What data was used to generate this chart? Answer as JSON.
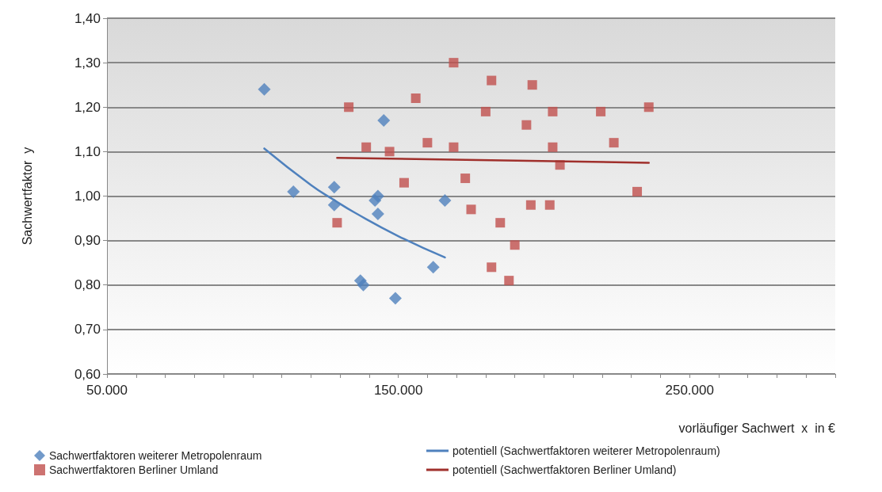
{
  "chart_data": {
    "type": "scatter",
    "xlabel": "vorläufiger Sachwert  x  in €",
    "ylabel": "Sachwertfaktor  y",
    "xlim": [
      50000,
      300000
    ],
    "xticks": [
      {
        "value": 50000,
        "label": "50.000"
      },
      {
        "value": 60000,
        "label": null
      },
      {
        "value": 70000,
        "label": null
      },
      {
        "value": 80000,
        "label": null
      },
      {
        "value": 90000,
        "label": null
      },
      {
        "value": 100000,
        "label": null
      },
      {
        "value": 110000,
        "label": null
      },
      {
        "value": 120000,
        "label": null
      },
      {
        "value": 130000,
        "label": null
      },
      {
        "value": 140000,
        "label": null
      },
      {
        "value": 150000,
        "label": "150.000"
      },
      {
        "value": 160000,
        "label": null
      },
      {
        "value": 170000,
        "label": null
      },
      {
        "value": 180000,
        "label": null
      },
      {
        "value": 190000,
        "label": null
      },
      {
        "value": 200000,
        "label": null
      },
      {
        "value": 210000,
        "label": null
      },
      {
        "value": 220000,
        "label": null
      },
      {
        "value": 230000,
        "label": null
      },
      {
        "value": 240000,
        "label": null
      },
      {
        "value": 250000,
        "label": "250.000"
      },
      {
        "value": 260000,
        "label": null
      },
      {
        "value": 270000,
        "label": null
      },
      {
        "value": 280000,
        "label": null
      },
      {
        "value": 290000,
        "label": null
      },
      {
        "value": 300000,
        "label": null
      }
    ],
    "ylim": [
      0.6,
      1.4
    ],
    "yticks": [
      {
        "value": 0.6,
        "label": "0,60"
      },
      {
        "value": 0.7,
        "label": "0,70"
      },
      {
        "value": 0.8,
        "label": "0,80"
      },
      {
        "value": 0.9,
        "label": "0,90"
      },
      {
        "value": 1.0,
        "label": "1,00"
      },
      {
        "value": 1.1,
        "label": "1,10"
      },
      {
        "value": 1.2,
        "label": "1,20"
      },
      {
        "value": 1.3,
        "label": "1,30"
      },
      {
        "value": 1.4,
        "label": "1,40"
      }
    ],
    "grid": "y",
    "legend": "bottom",
    "series": [
      {
        "name": "Sachwertfaktoren weiterer Metropolenraum",
        "marker": "diamond",
        "color": "#4f81bd",
        "x": [
          104000,
          114000,
          128000,
          128000,
          137000,
          138000,
          142000,
          143000,
          143000,
          145000,
          149000,
          162000,
          166000
        ],
        "values": [
          1.24,
          1.01,
          1.02,
          0.98,
          0.81,
          0.8,
          0.99,
          1.0,
          0.96,
          1.17,
          0.77,
          0.84,
          0.99
        ]
      },
      {
        "name": "Sachwertfaktoren Berliner Umland",
        "marker": "square",
        "color": "#c0504d",
        "x": [
          133000,
          129000,
          139000,
          147000,
          152000,
          156000,
          160000,
          169000,
          169000,
          173000,
          175000,
          180000,
          182000,
          182000,
          185000,
          188000,
          190000,
          194000,
          195500,
          196000,
          202000,
          203000,
          203000,
          205500,
          219500,
          224000,
          232000,
          236000
        ],
        "values": [
          1.2,
          0.94,
          1.11,
          1.1,
          1.03,
          1.22,
          1.12,
          1.3,
          1.11,
          1.04,
          0.97,
          1.19,
          1.26,
          0.84,
          0.94,
          0.81,
          0.89,
          1.16,
          0.98,
          1.25,
          0.98,
          1.19,
          1.11,
          1.07,
          1.19,
          1.12,
          1.01,
          1.2
        ]
      },
      {
        "name": "potentiell (Sachwertfaktoren weiterer Metropolenraum)",
        "type": "line",
        "marker": "none",
        "color": "#4f81bd",
        "x": [
          104000,
          120000,
          128000,
          135000,
          150000,
          166000
        ],
        "values": [
          1.107,
          1.025,
          0.991,
          0.963,
          0.91,
          0.862
        ]
      },
      {
        "name": "potentiell (Sachwertfaktoren Berliner Umland)",
        "type": "line",
        "marker": "none",
        "color": "#a0302c",
        "x": [
          129000,
          236000
        ],
        "values": [
          1.086,
          1.075
        ]
      }
    ]
  }
}
